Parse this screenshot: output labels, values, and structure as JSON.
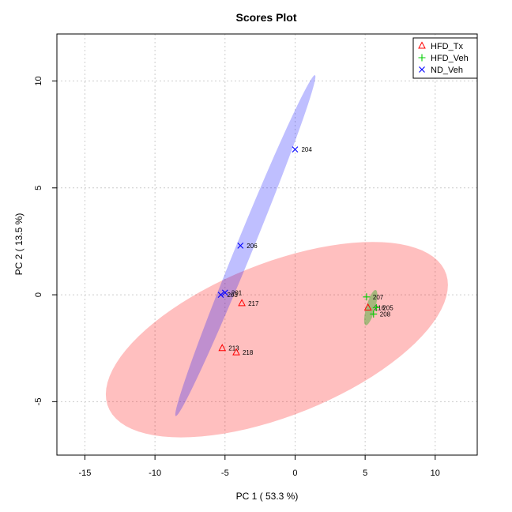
{
  "chart_data": {
    "type": "scatter",
    "title": "Scores Plot",
    "xlabel": "PC 1 ( 53.3 %)",
    "ylabel": "PC 2 ( 13.5 %)",
    "xlim": [
      -17,
      13
    ],
    "ylim": [
      -7.5,
      12.2
    ],
    "xticks": [
      -15,
      -10,
      -5,
      0,
      5,
      10
    ],
    "yticks": [
      -5,
      0,
      5,
      10
    ],
    "grid": true,
    "legend_position": "top-right",
    "series": [
      {
        "name": "HFD_Tx",
        "marker": "triangle",
        "color": "#ff0000",
        "ellipse": {
          "cx": -1.3,
          "cy": -2.1,
          "a": 12.5,
          "b": 3.7,
          "angle_deg": 13,
          "color": "#ff0000",
          "opacity": 0.25
        },
        "points": [
          {
            "label": "217",
            "x": -3.8,
            "y": -0.4
          },
          {
            "label": "213",
            "x": -5.2,
            "y": -2.5
          },
          {
            "label": "218",
            "x": -4.2,
            "y": -2.7
          },
          {
            "label": "216",
            "x": 5.2,
            "y": -0.6
          }
        ]
      },
      {
        "name": "HFD_Veh",
        "marker": "plus",
        "color": "#00cc00",
        "ellipse": {
          "cx": 5.4,
          "cy": -0.6,
          "a": 0.9,
          "b": 0.3,
          "angle_deg": 65,
          "color": "#00aa00",
          "opacity": 0.35
        },
        "points": [
          {
            "label": "207",
            "x": 5.1,
            "y": -0.1
          },
          {
            "label": "205",
            "x": 5.8,
            "y": -0.6
          },
          {
            "label": "208",
            "x": 5.6,
            "y": -0.9
          }
        ]
      },
      {
        "name": "ND_Veh",
        "marker": "cross",
        "color": "#0000ff",
        "ellipse": {
          "cx": -3.55,
          "cy": 2.3,
          "a": 9.4,
          "b": 0.55,
          "angle_deg": 58,
          "color": "#0000ff",
          "opacity": 0.25
        },
        "points": [
          {
            "label": "204",
            "x": 0.0,
            "y": 6.8
          },
          {
            "label": "206",
            "x": -3.9,
            "y": 2.3
          },
          {
            "label": "201",
            "x": -5.0,
            "y": 0.1
          },
          {
            "label": "203",
            "x": -5.3,
            "y": 0.0
          }
        ]
      }
    ]
  }
}
